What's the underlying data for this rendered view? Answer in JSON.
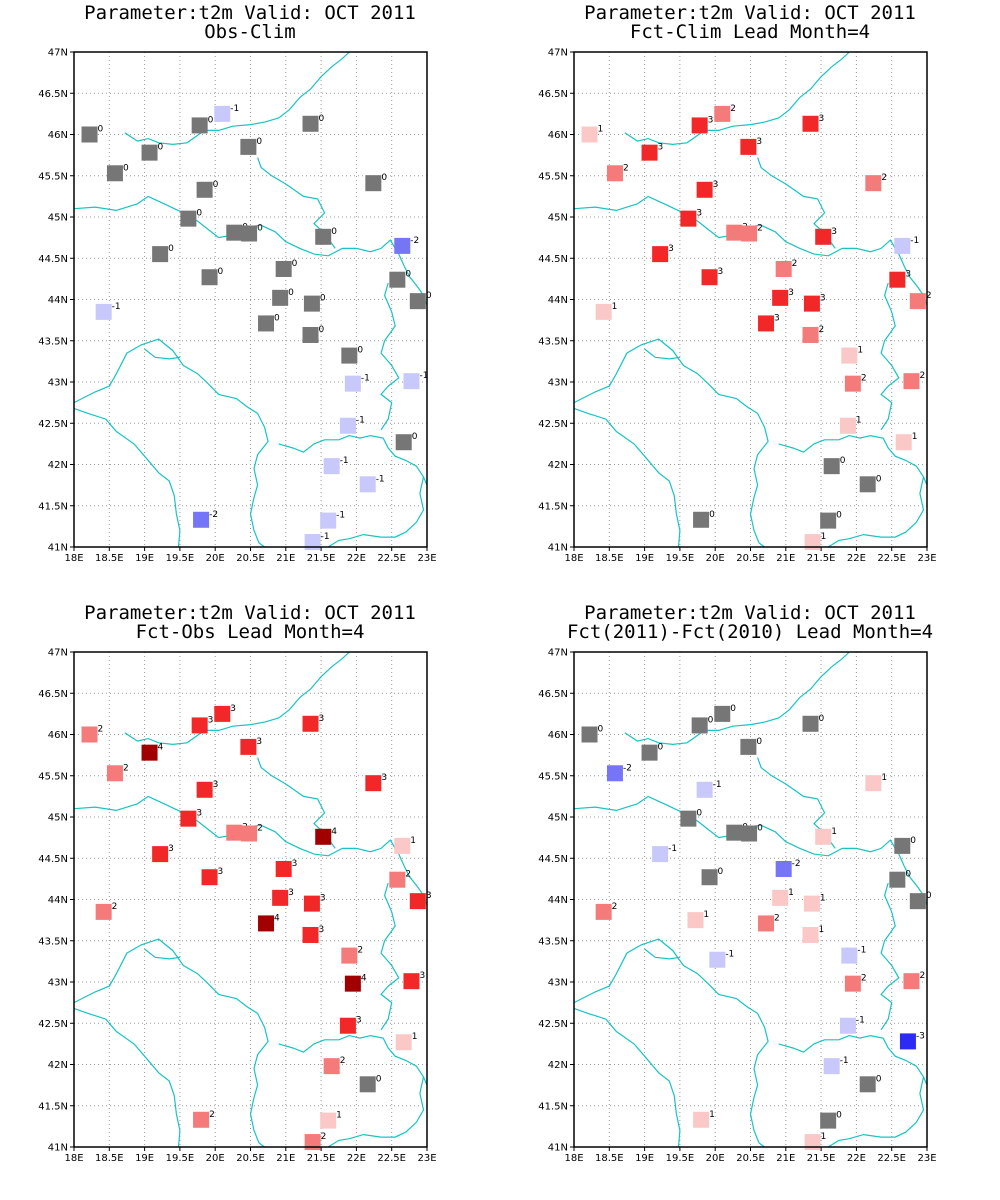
{
  "axes": {
    "lon_range": [
      18,
      23
    ],
    "lat_range": [
      41,
      47
    ],
    "x_ticks": [
      "18E",
      "18.5E",
      "19E",
      "19.5E",
      "20E",
      "20.5E",
      "21E",
      "21.5E",
      "22E",
      "22.5E",
      "23E"
    ],
    "y_ticks": [
      "41N",
      "41.5N",
      "42N",
      "42.5N",
      "43N",
      "43.5N",
      "44N",
      "44.5N",
      "45N",
      "45.5N",
      "46N",
      "46.5N",
      "47N"
    ],
    "grid": true
  },
  "colors": {
    "neutral": "#767676",
    "coast": "#19c3c3",
    "scale": {
      "-3": "#2b2bf4",
      "-2": "#7575f5",
      "-1": "#c8c8fa",
      "0": "#767676",
      "1": "#fbc8c8",
      "2": "#f57a7a",
      "3": "#f22828",
      "4": "#a00000"
    }
  },
  "panels": [
    {
      "title": "Parameter:t2m Valid: OCT 2011",
      "subtitle": "Obs-Clim",
      "stations": [
        {
          "lon": 18.22,
          "lat": 46.0,
          "v": "0"
        },
        {
          "lon": 20.1,
          "lat": 46.25,
          "v": "-1"
        },
        {
          "lon": 19.78,
          "lat": 46.11,
          "v": "0"
        },
        {
          "lon": 21.35,
          "lat": 46.13,
          "v": "0"
        },
        {
          "lon": 19.07,
          "lat": 45.78,
          "v": "0"
        },
        {
          "lon": 20.47,
          "lat": 45.85,
          "v": "0"
        },
        {
          "lon": 18.58,
          "lat": 45.53,
          "v": "0"
        },
        {
          "lon": 22.24,
          "lat": 45.41,
          "v": "0"
        },
        {
          "lon": 19.85,
          "lat": 45.33,
          "v": "0"
        },
        {
          "lon": 19.62,
          "lat": 44.98,
          "v": "0"
        },
        {
          "lon": 20.27,
          "lat": 44.81,
          "v": "0"
        },
        {
          "lon": 20.48,
          "lat": 44.8,
          "v": "0"
        },
        {
          "lon": 21.53,
          "lat": 44.76,
          "v": "0"
        },
        {
          "lon": 22.65,
          "lat": 44.65,
          "v": "-2"
        },
        {
          "lon": 19.22,
          "lat": 44.55,
          "v": "0"
        },
        {
          "lon": 19.92,
          "lat": 44.27,
          "v": "0"
        },
        {
          "lon": 20.97,
          "lat": 44.37,
          "v": "0"
        },
        {
          "lon": 22.58,
          "lat": 44.24,
          "v": "0"
        },
        {
          "lon": 20.92,
          "lat": 44.02,
          "v": "0"
        },
        {
          "lon": 21.37,
          "lat": 43.95,
          "v": "0"
        },
        {
          "lon": 22.87,
          "lat": 43.98,
          "v": "0"
        },
        {
          "lon": 18.42,
          "lat": 43.85,
          "v": "-1"
        },
        {
          "lon": 20.72,
          "lat": 43.71,
          "v": "0"
        },
        {
          "lon": 21.35,
          "lat": 43.57,
          "v": "0"
        },
        {
          "lon": 21.9,
          "lat": 43.32,
          "v": "0"
        },
        {
          "lon": 21.95,
          "lat": 42.98,
          "v": "-1"
        },
        {
          "lon": 22.78,
          "lat": 43.01,
          "v": "-1"
        },
        {
          "lon": 21.88,
          "lat": 42.47,
          "v": "-1"
        },
        {
          "lon": 22.67,
          "lat": 42.27,
          "v": "0"
        },
        {
          "lon": 21.65,
          "lat": 41.98,
          "v": "-1"
        },
        {
          "lon": 22.16,
          "lat": 41.76,
          "v": "-1"
        },
        {
          "lon": 19.8,
          "lat": 41.33,
          "v": "-2"
        },
        {
          "lon": 21.6,
          "lat": 41.32,
          "v": "-1"
        },
        {
          "lon": 21.38,
          "lat": 41.06,
          "v": "-1"
        }
      ]
    },
    {
      "title": "Parameter:t2m Valid: OCT 2011",
      "subtitle": "Fct-Clim Lead Month=4",
      "stations": [
        {
          "lon": 18.22,
          "lat": 46.0,
          "v": "1"
        },
        {
          "lon": 20.1,
          "lat": 46.25,
          "v": "2"
        },
        {
          "lon": 19.78,
          "lat": 46.11,
          "v": "3"
        },
        {
          "lon": 21.35,
          "lat": 46.13,
          "v": "3"
        },
        {
          "lon": 19.07,
          "lat": 45.78,
          "v": "3"
        },
        {
          "lon": 20.47,
          "lat": 45.85,
          "v": "3"
        },
        {
          "lon": 18.58,
          "lat": 45.53,
          "v": "2"
        },
        {
          "lon": 22.24,
          "lat": 45.41,
          "v": "2"
        },
        {
          "lon": 19.85,
          "lat": 45.33,
          "v": "3"
        },
        {
          "lon": 19.62,
          "lat": 44.98,
          "v": "3"
        },
        {
          "lon": 20.27,
          "lat": 44.81,
          "v": "2"
        },
        {
          "lon": 20.48,
          "lat": 44.8,
          "v": "2"
        },
        {
          "lon": 21.53,
          "lat": 44.76,
          "v": "3"
        },
        {
          "lon": 22.65,
          "lat": 44.65,
          "v": "-1"
        },
        {
          "lon": 19.22,
          "lat": 44.55,
          "v": "3"
        },
        {
          "lon": 19.92,
          "lat": 44.27,
          "v": "3"
        },
        {
          "lon": 20.97,
          "lat": 44.37,
          "v": "2"
        },
        {
          "lon": 22.58,
          "lat": 44.24,
          "v": "3"
        },
        {
          "lon": 20.92,
          "lat": 44.02,
          "v": "3"
        },
        {
          "lon": 21.37,
          "lat": 43.95,
          "v": "3"
        },
        {
          "lon": 22.87,
          "lat": 43.98,
          "v": "2"
        },
        {
          "lon": 18.42,
          "lat": 43.85,
          "v": "1"
        },
        {
          "lon": 20.72,
          "lat": 43.71,
          "v": "3"
        },
        {
          "lon": 21.35,
          "lat": 43.57,
          "v": "2"
        },
        {
          "lon": 21.9,
          "lat": 43.32,
          "v": "1"
        },
        {
          "lon": 21.95,
          "lat": 42.98,
          "v": "2"
        },
        {
          "lon": 22.78,
          "lat": 43.01,
          "v": "2"
        },
        {
          "lon": 21.88,
          "lat": 42.47,
          "v": "1"
        },
        {
          "lon": 22.67,
          "lat": 42.27,
          "v": "1"
        },
        {
          "lon": 21.65,
          "lat": 41.98,
          "v": "0"
        },
        {
          "lon": 22.16,
          "lat": 41.76,
          "v": "0"
        },
        {
          "lon": 19.8,
          "lat": 41.33,
          "v": "0"
        },
        {
          "lon": 21.6,
          "lat": 41.32,
          "v": "0"
        },
        {
          "lon": 21.38,
          "lat": 41.06,
          "v": "1"
        }
      ]
    },
    {
      "title": "Parameter:t2m Valid: OCT 2011",
      "subtitle": "Fct-Obs Lead Month=4",
      "stations": [
        {
          "lon": 18.22,
          "lat": 46.0,
          "v": "2"
        },
        {
          "lon": 20.1,
          "lat": 46.25,
          "v": "3"
        },
        {
          "lon": 19.78,
          "lat": 46.11,
          "v": "3"
        },
        {
          "lon": 21.35,
          "lat": 46.13,
          "v": "3"
        },
        {
          "lon": 19.07,
          "lat": 45.78,
          "v": "4"
        },
        {
          "lon": 20.47,
          "lat": 45.85,
          "v": "3"
        },
        {
          "lon": 18.58,
          "lat": 45.53,
          "v": "2"
        },
        {
          "lon": 22.24,
          "lat": 45.41,
          "v": "3"
        },
        {
          "lon": 19.85,
          "lat": 45.33,
          "v": "3"
        },
        {
          "lon": 19.62,
          "lat": 44.98,
          "v": "3"
        },
        {
          "lon": 20.27,
          "lat": 44.81,
          "v": "2"
        },
        {
          "lon": 20.48,
          "lat": 44.8,
          "v": "2"
        },
        {
          "lon": 21.53,
          "lat": 44.76,
          "v": "4"
        },
        {
          "lon": 22.65,
          "lat": 44.65,
          "v": "1"
        },
        {
          "lon": 19.22,
          "lat": 44.55,
          "v": "3"
        },
        {
          "lon": 19.92,
          "lat": 44.27,
          "v": "3"
        },
        {
          "lon": 20.97,
          "lat": 44.37,
          "v": "3"
        },
        {
          "lon": 22.58,
          "lat": 44.24,
          "v": "2"
        },
        {
          "lon": 20.92,
          "lat": 44.02,
          "v": "3"
        },
        {
          "lon": 21.37,
          "lat": 43.95,
          "v": "3"
        },
        {
          "lon": 22.87,
          "lat": 43.98,
          "v": "3"
        },
        {
          "lon": 18.42,
          "lat": 43.85,
          "v": "2"
        },
        {
          "lon": 20.72,
          "lat": 43.71,
          "v": "4"
        },
        {
          "lon": 21.35,
          "lat": 43.57,
          "v": "3"
        },
        {
          "lon": 21.9,
          "lat": 43.32,
          "v": "2"
        },
        {
          "lon": 21.95,
          "lat": 42.98,
          "v": "4"
        },
        {
          "lon": 22.78,
          "lat": 43.01,
          "v": "3"
        },
        {
          "lon": 21.88,
          "lat": 42.47,
          "v": "3"
        },
        {
          "lon": 22.67,
          "lat": 42.27,
          "v": "1"
        },
        {
          "lon": 21.65,
          "lat": 41.98,
          "v": "2"
        },
        {
          "lon": 22.16,
          "lat": 41.76,
          "v": "0"
        },
        {
          "lon": 19.8,
          "lat": 41.33,
          "v": "2"
        },
        {
          "lon": 21.6,
          "lat": 41.32,
          "v": "1"
        },
        {
          "lon": 21.38,
          "lat": 41.06,
          "v": "2"
        }
      ]
    },
    {
      "title": "Parameter:t2m Valid: OCT 2011",
      "subtitle": "Fct(2011)-Fct(2010) Lead Month=4",
      "stations": [
        {
          "lon": 18.22,
          "lat": 46.0,
          "v": "0"
        },
        {
          "lon": 20.1,
          "lat": 46.25,
          "v": "0"
        },
        {
          "lon": 19.78,
          "lat": 46.11,
          "v": "0"
        },
        {
          "lon": 21.35,
          "lat": 46.13,
          "v": "0"
        },
        {
          "lon": 19.07,
          "lat": 45.78,
          "v": "0"
        },
        {
          "lon": 20.47,
          "lat": 45.85,
          "v": "0"
        },
        {
          "lon": 18.58,
          "lat": 45.53,
          "v": "-2"
        },
        {
          "lon": 22.24,
          "lat": 45.41,
          "v": "1"
        },
        {
          "lon": 19.85,
          "lat": 45.33,
          "v": "-1"
        },
        {
          "lon": 19.62,
          "lat": 44.98,
          "v": "0"
        },
        {
          "lon": 20.27,
          "lat": 44.81,
          "v": "0"
        },
        {
          "lon": 20.48,
          "lat": 44.8,
          "v": "0"
        },
        {
          "lon": 21.53,
          "lat": 44.76,
          "v": "1"
        },
        {
          "lon": 22.65,
          "lat": 44.65,
          "v": "0"
        },
        {
          "lon": 19.22,
          "lat": 44.55,
          "v": "-1"
        },
        {
          "lon": 19.92,
          "lat": 44.27,
          "v": "0"
        },
        {
          "lon": 20.97,
          "lat": 44.37,
          "v": "-2"
        },
        {
          "lon": 22.58,
          "lat": 44.24,
          "v": "0"
        },
        {
          "lon": 20.92,
          "lat": 44.02,
          "v": "1"
        },
        {
          "lon": 21.37,
          "lat": 43.95,
          "v": "1"
        },
        {
          "lon": 22.87,
          "lat": 43.98,
          "v": "0"
        },
        {
          "lon": 18.42,
          "lat": 43.85,
          "v": "2"
        },
        {
          "lon": 19.72,
          "lat": 43.75,
          "v": "1"
        },
        {
          "lon": 20.72,
          "lat": 43.71,
          "v": "2"
        },
        {
          "lon": 21.35,
          "lat": 43.57,
          "v": "1"
        },
        {
          "lon": 21.9,
          "lat": 43.32,
          "v": "-1"
        },
        {
          "lon": 20.03,
          "lat": 43.27,
          "v": "-1"
        },
        {
          "lon": 21.95,
          "lat": 42.98,
          "v": "2"
        },
        {
          "lon": 22.78,
          "lat": 43.01,
          "v": "2"
        },
        {
          "lon": 21.88,
          "lat": 42.47,
          "v": "-1"
        },
        {
          "lon": 22.73,
          "lat": 42.28,
          "v": "-3"
        },
        {
          "lon": 21.65,
          "lat": 41.98,
          "v": "-1"
        },
        {
          "lon": 22.16,
          "lat": 41.76,
          "v": "0"
        },
        {
          "lon": 19.8,
          "lat": 41.33,
          "v": "1"
        },
        {
          "lon": 21.6,
          "lat": 41.32,
          "v": "0"
        },
        {
          "lon": 21.38,
          "lat": 41.06,
          "v": "1"
        }
      ]
    }
  ]
}
